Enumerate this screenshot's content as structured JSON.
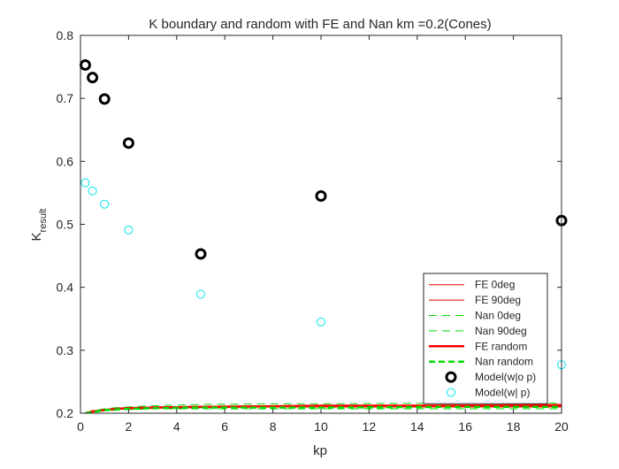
{
  "chart_data": {
    "type": "scatter",
    "title": "K boundary and random with FE and Nan km =0.2(Cones)",
    "xlabel": "kp",
    "ylabel": "K",
    "ylabel_subscript": "result",
    "xlim": [
      0,
      20
    ],
    "ylim": [
      0.2,
      0.8
    ],
    "xticks": [
      0,
      2,
      4,
      6,
      8,
      10,
      12,
      14,
      16,
      18,
      20
    ],
    "yticks": [
      0.2,
      0.3,
      0.4,
      0.5,
      0.6,
      0.7,
      0.8
    ],
    "grid": false,
    "legend_position": "bottom-right",
    "series": [
      {
        "name": "FE 0deg",
        "kind": "line",
        "color": "#ff0000",
        "style": "solid",
        "width": "thin",
        "x": [
          0.2,
          0.5,
          1,
          1.5,
          2,
          3,
          5,
          8,
          10,
          15,
          20
        ],
        "y": [
          0.2,
          0.202,
          0.205,
          0.206,
          0.207,
          0.208,
          0.209,
          0.21,
          0.21,
          0.21,
          0.21
        ]
      },
      {
        "name": "FE 90deg",
        "kind": "line",
        "color": "#ff0000",
        "style": "solid",
        "width": "thin",
        "x": [
          0.2,
          0.5,
          1,
          1.5,
          2,
          3,
          5,
          8,
          10,
          15,
          20
        ],
        "y": [
          0.2,
          0.203,
          0.206,
          0.208,
          0.209,
          0.21,
          0.211,
          0.212,
          0.213,
          0.213,
          0.214
        ]
      },
      {
        "name": "Nan 0deg",
        "kind": "line",
        "color": "#00dd00",
        "style": "dashed",
        "width": "thin",
        "x": [
          0.2,
          0.5,
          1,
          1.5,
          2,
          3,
          5,
          8,
          10,
          15,
          20
        ],
        "y": [
          0.2,
          0.202,
          0.204,
          0.205,
          0.206,
          0.207,
          0.207,
          0.207,
          0.207,
          0.207,
          0.207
        ]
      },
      {
        "name": "Nan 90deg",
        "kind": "line",
        "color": "#00dd00",
        "style": "dashed",
        "width": "thin",
        "x": [
          0.2,
          0.5,
          1,
          1.5,
          2,
          3,
          5,
          8,
          10,
          15,
          20
        ],
        "y": [
          0.2,
          0.204,
          0.207,
          0.209,
          0.21,
          0.212,
          0.214,
          0.215,
          0.215,
          0.216,
          0.216
        ]
      },
      {
        "name": "FE random",
        "kind": "line",
        "color": "#ff0000",
        "style": "solid",
        "width": "thick",
        "x": [
          0.2,
          0.5,
          1,
          1.5,
          2,
          3,
          5,
          8,
          10,
          15,
          20
        ],
        "y": [
          0.2,
          0.203,
          0.205,
          0.207,
          0.208,
          0.209,
          0.21,
          0.211,
          0.211,
          0.212,
          0.212
        ]
      },
      {
        "name": "Nan random",
        "kind": "line",
        "color": "#00dd00",
        "style": "dashed",
        "width": "thick",
        "x": [
          0.2,
          0.5,
          1,
          1.5,
          2,
          3,
          5,
          8,
          10,
          15,
          20
        ],
        "y": [
          0.2,
          0.202,
          0.205,
          0.206,
          0.207,
          0.208,
          0.209,
          0.209,
          0.209,
          0.21,
          0.21
        ]
      },
      {
        "name": "Model(w|o p)",
        "kind": "marker",
        "color": "#000000",
        "marker_size": "large",
        "x": [
          0.2,
          0.5,
          1,
          2,
          5,
          10,
          20
        ],
        "y": [
          0.753,
          0.733,
          0.699,
          0.629,
          0.453,
          0.545,
          0.506
        ]
      },
      {
        "name": "Model(w| p)",
        "kind": "marker",
        "color": "#00e5ee",
        "marker_size": "small",
        "x": [
          0.2,
          0.5,
          1,
          2,
          5,
          10,
          20
        ],
        "y": [
          0.566,
          0.553,
          0.532,
          0.491,
          0.389,
          0.345,
          0.277
        ]
      }
    ]
  }
}
